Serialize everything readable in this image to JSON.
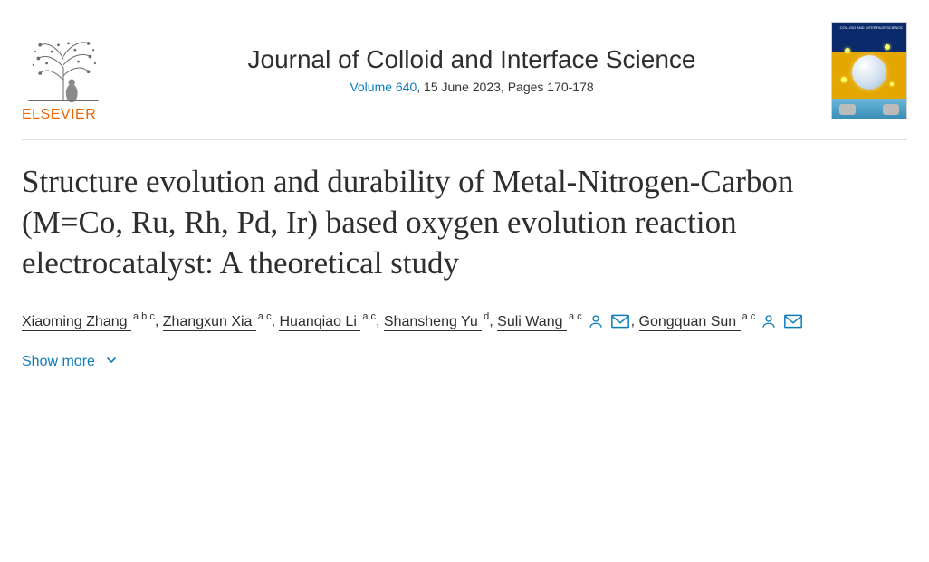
{
  "publisher": {
    "name": "ELSEVIER",
    "color": "#eb6500"
  },
  "journal": {
    "title": "Journal of Colloid and Interface Science",
    "volume_link": "Volume 640",
    "issue_rest": ", 15 June 2023, Pages 170-178",
    "link_color": "#0c7dbb",
    "cover_label": "COLLOID AND INTERFACE SCIENCE"
  },
  "article": {
    "title": "Structure evolution and durability of Metal-Nitrogen-Carbon (M=Co, Ru, Rh, Pd, Ir) based oxygen evolution reaction electrocatalyst: A theoretical study"
  },
  "authors": [
    {
      "name": "Xiaoming Zhang",
      "affils": "a b c",
      "person_icon": false,
      "mail_icon": false
    },
    {
      "name": "Zhangxun Xia",
      "affils": "a c",
      "person_icon": false,
      "mail_icon": false
    },
    {
      "name": "Huanqiao Li",
      "affils": "a c",
      "person_icon": false,
      "mail_icon": false
    },
    {
      "name": "Shansheng Yu",
      "affils": "d",
      "person_icon": false,
      "mail_icon": false
    },
    {
      "name": "Suli Wang",
      "affils": "a c",
      "person_icon": true,
      "mail_icon": true
    },
    {
      "name": "Gongquan Sun",
      "affils": "a c",
      "person_icon": true,
      "mail_icon": true
    }
  ],
  "show_more_label": "Show more",
  "colors": {
    "text": "#2e2e2e",
    "link": "#0c7dbb",
    "hr": "#e0e0e0",
    "publisher": "#eb6500"
  }
}
